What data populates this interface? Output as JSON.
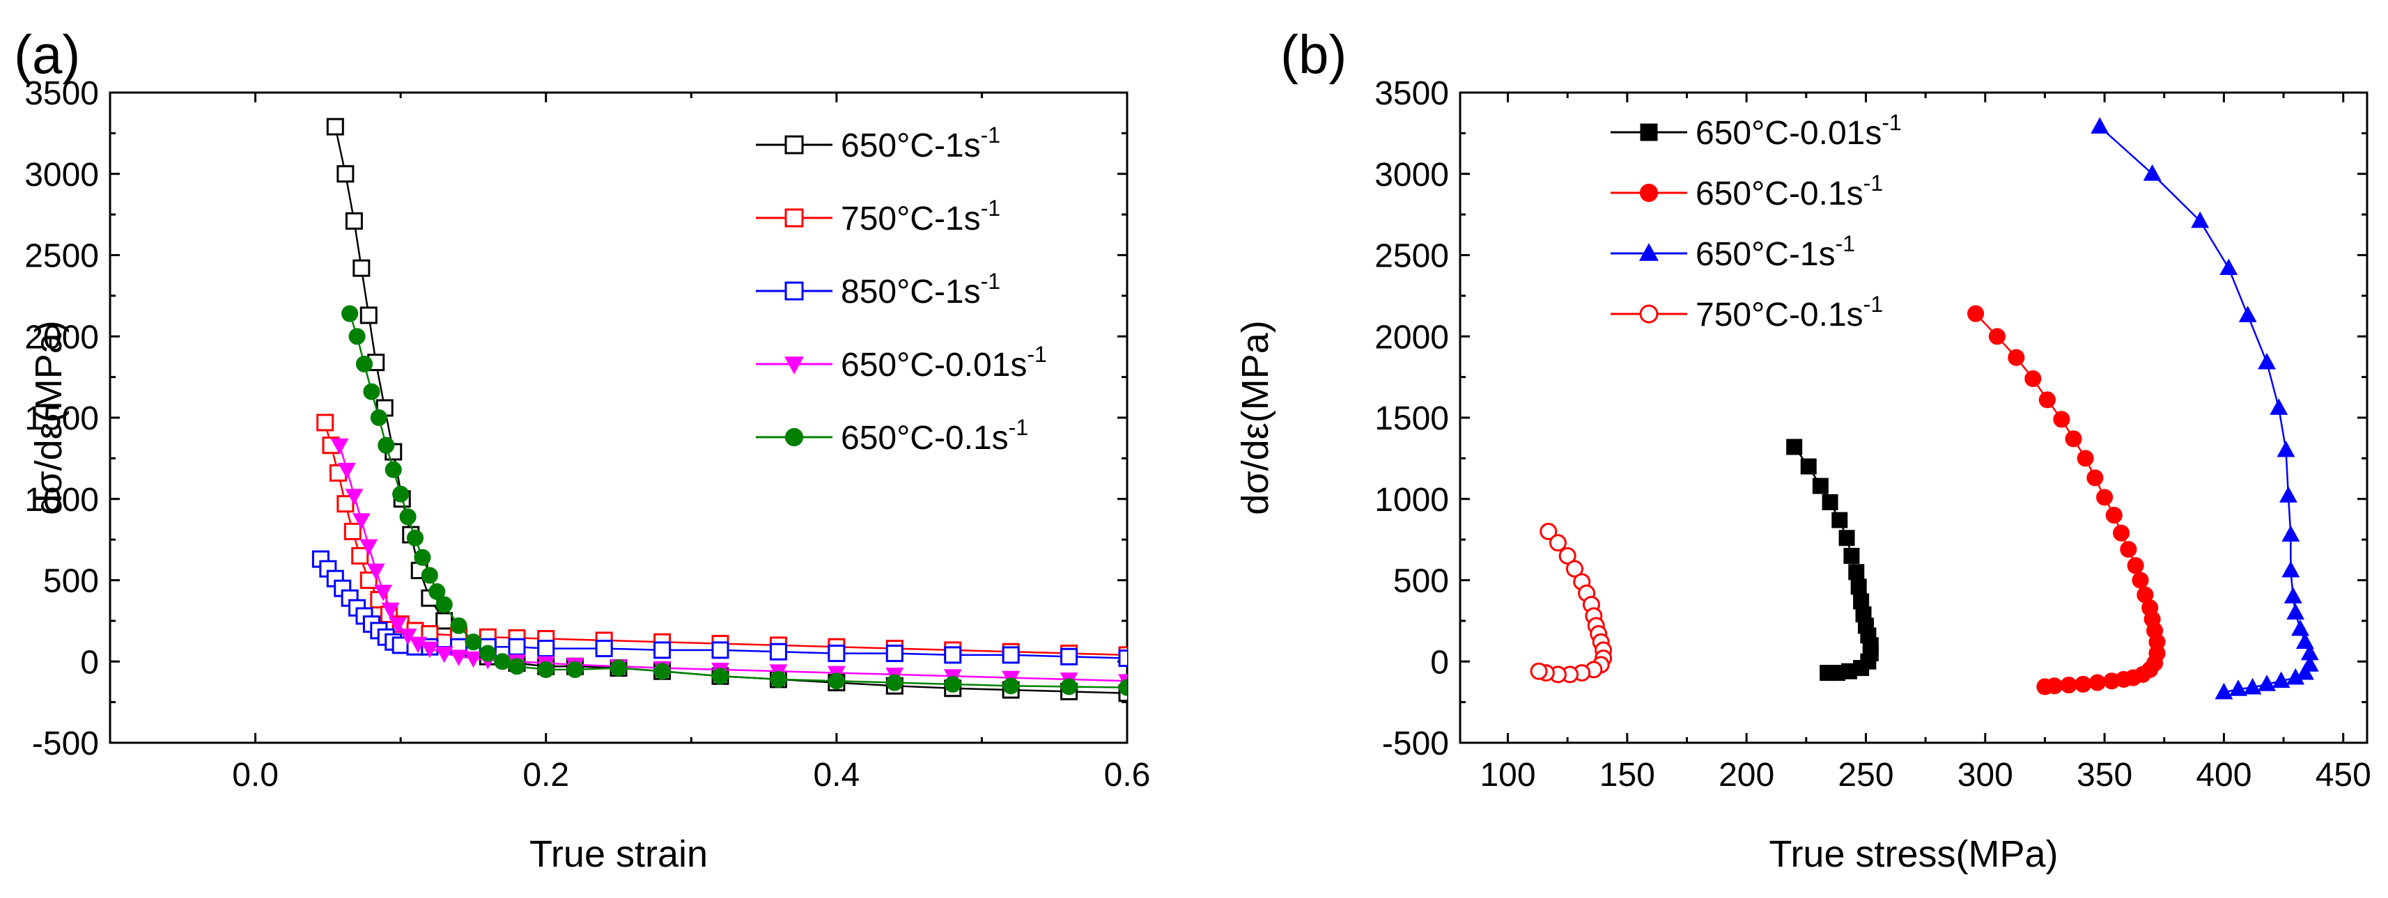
{
  "chart_data": [
    {
      "panel_label": "(a)",
      "type": "line",
      "xlabel": "True strain",
      "ylabel": "dσ/dε(MPa)",
      "xlim": [
        -0.1,
        0.6
      ],
      "ylim": [
        -500,
        3500
      ],
      "xticks": [
        "0.0",
        "0.2",
        "0.4",
        "0.6"
      ],
      "yticks": [
        "-500",
        "0",
        "500",
        "1000",
        "1500",
        "2000",
        "2500",
        "3000",
        "3500"
      ],
      "legend_position": "top-right",
      "series": [
        {
          "name": "650°C-1s",
          "sup": "-1",
          "color": "#000000",
          "marker": "square-open",
          "x": [
            0.055,
            0.062,
            0.068,
            0.073,
            0.078,
            0.083,
            0.089,
            0.095,
            0.101,
            0.107,
            0.113,
            0.12,
            0.13,
            0.14,
            0.15,
            0.16,
            0.18,
            0.2,
            0.22,
            0.25,
            0.28,
            0.32,
            0.36,
            0.4,
            0.44,
            0.48,
            0.52,
            0.56,
            0.6
          ],
          "y": [
            3290,
            3000,
            2710,
            2420,
            2130,
            1840,
            1560,
            1290,
            1000,
            780,
            560,
            390,
            250,
            150,
            80,
            30,
            -10,
            -30,
            -30,
            -40,
            -60,
            -90,
            -110,
            -130,
            -150,
            -165,
            -175,
            -185,
            -195
          ]
        },
        {
          "name": "750°C-1s",
          "sup": "-1",
          "color": "#ff0000",
          "marker": "square-open",
          "x": [
            0.048,
            0.052,
            0.057,
            0.062,
            0.067,
            0.072,
            0.078,
            0.085,
            0.092,
            0.1,
            0.11,
            0.12,
            0.14,
            0.16,
            0.18,
            0.2,
            0.24,
            0.28,
            0.32,
            0.36,
            0.4,
            0.44,
            0.48,
            0.52,
            0.56,
            0.6
          ],
          "y": [
            1470,
            1330,
            1160,
            970,
            800,
            650,
            500,
            380,
            290,
            230,
            190,
            170,
            160,
            150,
            145,
            140,
            130,
            120,
            110,
            100,
            90,
            80,
            70,
            60,
            50,
            40
          ]
        },
        {
          "name": "850°C-1s",
          "sup": "-1",
          "color": "#0000ff",
          "marker": "square-open",
          "x": [
            0.045,
            0.05,
            0.055,
            0.06,
            0.065,
            0.07,
            0.075,
            0.08,
            0.085,
            0.09,
            0.095,
            0.1,
            0.11,
            0.12,
            0.14,
            0.16,
            0.18,
            0.2,
            0.24,
            0.28,
            0.32,
            0.36,
            0.4,
            0.44,
            0.48,
            0.52,
            0.56,
            0.6
          ],
          "y": [
            630,
            570,
            510,
            450,
            390,
            330,
            280,
            230,
            190,
            150,
            120,
            100,
            90,
            90,
            90,
            90,
            90,
            80,
            80,
            70,
            70,
            60,
            50,
            50,
            40,
            40,
            30,
            20
          ]
        },
        {
          "name": "650°C-0.01s",
          "sup": "-1",
          "color": "#ff00ff",
          "marker": "triangle-down-filled",
          "x": [
            0.058,
            0.063,
            0.068,
            0.073,
            0.078,
            0.083,
            0.088,
            0.093,
            0.098,
            0.105,
            0.112,
            0.12,
            0.13,
            0.14,
            0.15,
            0.16,
            0.18,
            0.2,
            0.22,
            0.25,
            0.28,
            0.32,
            0.36,
            0.4,
            0.44,
            0.48,
            0.52,
            0.56,
            0.6
          ],
          "y": [
            1330,
            1180,
            1020,
            870,
            710,
            560,
            430,
            320,
            230,
            160,
            110,
            80,
            50,
            30,
            20,
            10,
            0,
            -10,
            -20,
            -30,
            -40,
            -50,
            -60,
            -70,
            -80,
            -90,
            -100,
            -110,
            -120
          ]
        },
        {
          "name": "650°C-0.1s",
          "sup": "-1",
          "color": "#008000",
          "marker": "circle-filled",
          "x": [
            0.065,
            0.07,
            0.075,
            0.08,
            0.085,
            0.09,
            0.095,
            0.1,
            0.105,
            0.11,
            0.115,
            0.12,
            0.125,
            0.13,
            0.14,
            0.15,
            0.16,
            0.17,
            0.18,
            0.2,
            0.22,
            0.25,
            0.28,
            0.32,
            0.36,
            0.4,
            0.44,
            0.48,
            0.52,
            0.56,
            0.6
          ],
          "y": [
            2140,
            2000,
            1830,
            1660,
            1500,
            1330,
            1180,
            1030,
            890,
            760,
            640,
            530,
            430,
            350,
            220,
            120,
            50,
            0,
            -30,
            -50,
            -50,
            -40,
            -60,
            -90,
            -110,
            -120,
            -130,
            -140,
            -150,
            -155,
            -160
          ]
        }
      ]
    },
    {
      "panel_label": "(b)",
      "type": "line",
      "xlabel": "True stress(MPa)",
      "ylabel": "dσ/dε(MPa)",
      "xlim": [
        80,
        460
      ],
      "ylim": [
        -500,
        3500
      ],
      "xticks": [
        "100",
        "150",
        "200",
        "250",
        "300",
        "350",
        "400",
        "450"
      ],
      "yticks": [
        "-500",
        "0",
        "500",
        "1000",
        "1500",
        "2000",
        "2500",
        "3000",
        "3500"
      ],
      "legend_position": "top-left",
      "series": [
        {
          "name": "650°C-0.01s",
          "sup": "-1",
          "color": "#000000",
          "marker": "square-filled",
          "x": [
            220,
            226,
            231,
            235,
            239,
            242,
            244,
            246,
            247,
            248,
            249,
            250,
            251,
            252,
            252,
            251,
            248,
            243,
            238,
            234
          ],
          "y": [
            1320,
            1200,
            1080,
            980,
            870,
            760,
            650,
            550,
            460,
            370,
            290,
            220,
            160,
            100,
            50,
            0,
            -40,
            -60,
            -70,
            -70
          ]
        },
        {
          "name": "650°C-0.1s",
          "sup": "-1",
          "color": "#ff0000",
          "marker": "circle-filled",
          "x": [
            296,
            305,
            313,
            320,
            326,
            332,
            337,
            342,
            346,
            350,
            354,
            357,
            360,
            363,
            365,
            367,
            369,
            370,
            371,
            372,
            372,
            371,
            369,
            366,
            362,
            358,
            353,
            347,
            341,
            335,
            329,
            325
          ],
          "y": [
            2140,
            2000,
            1870,
            1740,
            1610,
            1490,
            1370,
            1250,
            1130,
            1010,
            900,
            790,
            690,
            590,
            500,
            410,
            330,
            260,
            190,
            120,
            50,
            -10,
            -50,
            -80,
            -100,
            -110,
            -120,
            -130,
            -140,
            -145,
            -150,
            -155
          ]
        },
        {
          "name": "650°C-1s",
          "sup": "-1",
          "color": "#0000ff",
          "marker": "triangle-up-filled",
          "x": [
            348,
            370,
            390,
            402,
            410,
            418,
            423,
            426,
            427,
            428,
            428,
            429,
            430,
            432,
            434,
            436,
            436,
            434,
            430,
            424,
            418,
            412,
            406,
            400
          ],
          "y": [
            3290,
            3000,
            2710,
            2420,
            2130,
            1840,
            1560,
            1300,
            1020,
            780,
            560,
            400,
            300,
            200,
            120,
            50,
            -20,
            -70,
            -100,
            -120,
            -140,
            -160,
            -170,
            -190
          ]
        },
        {
          "name": "750°C-0.1s",
          "sup": "-1",
          "color": "#ff0000",
          "marker": "circle-open",
          "x": [
            117,
            121,
            125,
            128,
            131,
            133,
            135,
            136,
            137,
            138,
            139,
            140,
            140,
            139,
            136,
            131,
            126,
            121,
            116,
            113
          ],
          "y": [
            800,
            730,
            650,
            570,
            490,
            420,
            350,
            280,
            220,
            170,
            120,
            70,
            20,
            -20,
            -50,
            -70,
            -80,
            -80,
            -70,
            -60
          ]
        }
      ]
    }
  ]
}
